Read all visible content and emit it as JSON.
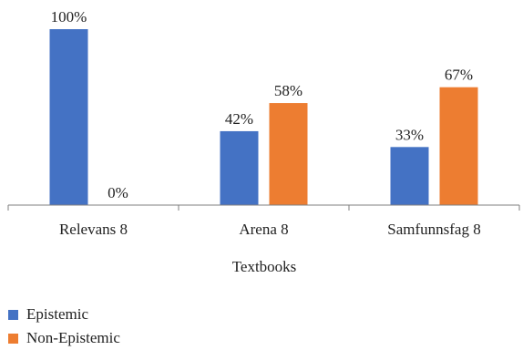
{
  "chart_data": {
    "type": "bar",
    "categories": [
      "Relevans 8",
      "Arena 8",
      "Samfunnsfag 8"
    ],
    "series": [
      {
        "name": "Epistemic",
        "values": [
          100,
          42,
          33
        ],
        "labels": [
          "100%",
          "42%",
          "33%"
        ],
        "color": "#4472C4"
      },
      {
        "name": "Non-Epistemic",
        "values": [
          0,
          58,
          67
        ],
        "labels": [
          "0%",
          "58%",
          "67%"
        ],
        "color": "#ED7D31"
      }
    ],
    "title": "",
    "xlabel": "Textbooks",
    "ylabel": "",
    "ylim": [
      0,
      100
    ],
    "grid": false,
    "legend_position": "bottom-left"
  }
}
